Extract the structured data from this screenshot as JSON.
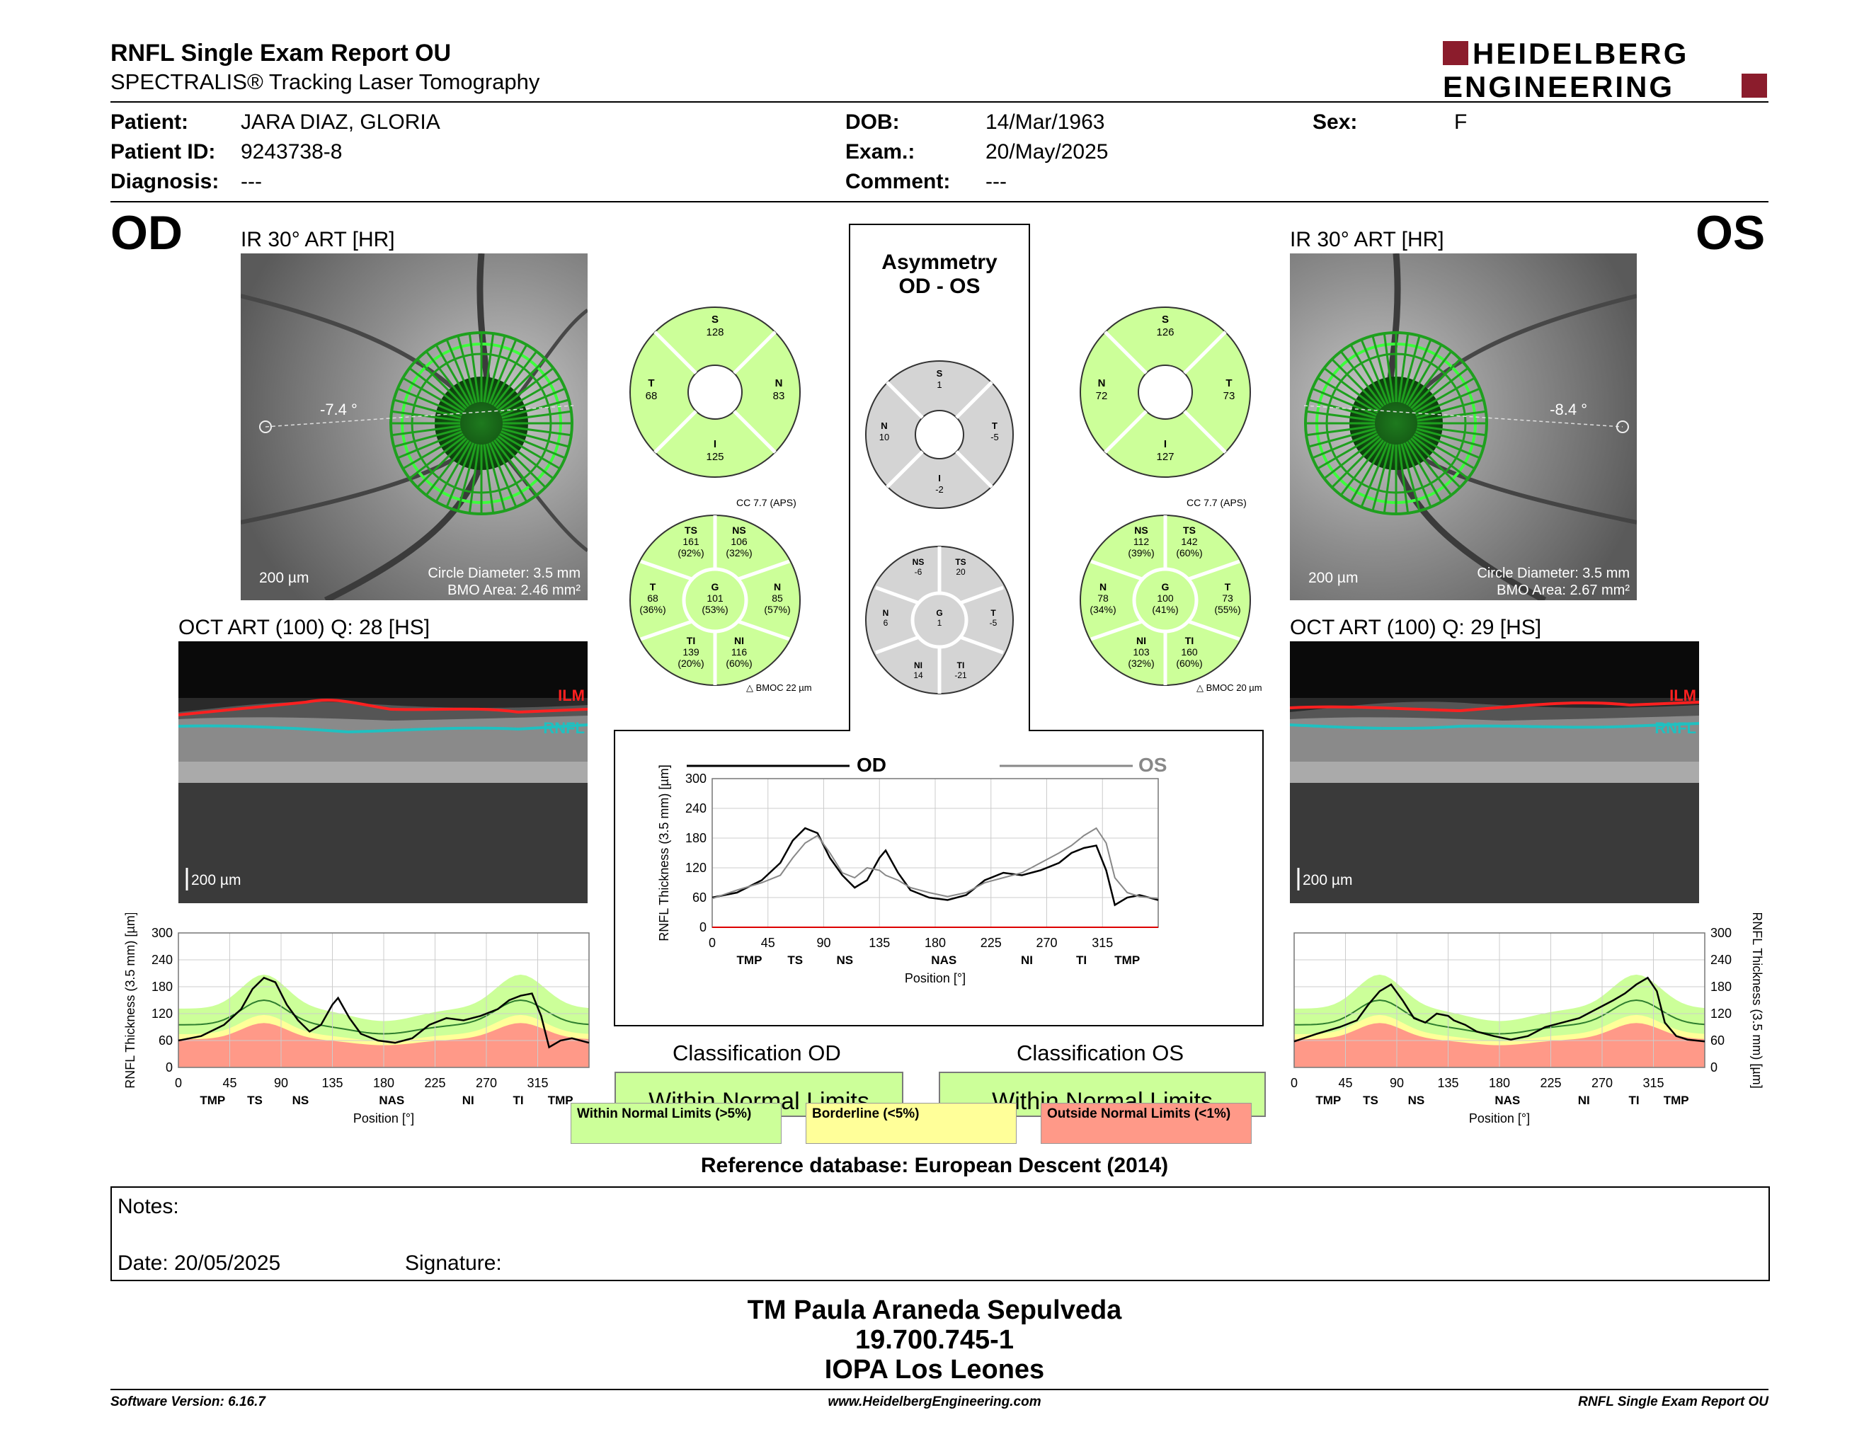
{
  "header": {
    "title": "RNFL Single Exam Report OU",
    "subtitle": "SPECTRALIS® Tracking Laser Tomography",
    "logo_line1": "HEIDELBERG",
    "logo_line2": "ENGINEERING"
  },
  "patient": {
    "patient_label": "Patient:",
    "patient_value": "JARA DIAZ, GLORIA",
    "id_label": "Patient ID:",
    "id_value": "9243738-8",
    "diagnosis_label": "Diagnosis:",
    "diagnosis_value": "---",
    "dob_label": "DOB:",
    "dob_value": "14/Mar/1963",
    "exam_label": "Exam.:",
    "exam_value": "20/May/2025",
    "comment_label": "Comment:",
    "comment_value": "---",
    "sex_label": "Sex:",
    "sex_value": "F"
  },
  "od": {
    "eye": "OD",
    "ir_title": "IR 30° ART [HR]",
    "angle": "-7.4 °",
    "scale": "200 µm",
    "circle_diameter": "Circle Diameter: 3.5 mm",
    "bmo_area": "BMO Area: 2.46 mm²",
    "oct_title": "OCT ART (100) Q: 28 [HS]",
    "oct_scale": "200 µm",
    "quad": {
      "S": "128",
      "T": "68",
      "N": "83",
      "I": "125"
    },
    "cc": "CC 7.7 (APS)",
    "bmoc": "BMOC 22 µm",
    "sectors": {
      "TS": [
        "161",
        "(92%)"
      ],
      "NS": [
        "106",
        "(32%)"
      ],
      "T": [
        "68",
        "(36%)"
      ],
      "G": [
        "101",
        "(53%)"
      ],
      "N": [
        "85",
        "(57%)"
      ],
      "TI": [
        "139",
        "(20%)"
      ],
      "NI": [
        "116",
        "(60%)"
      ]
    },
    "classification_title": "Classification OD",
    "classification": "Within Normal Limits"
  },
  "os": {
    "eye": "OS",
    "ir_title": "IR 30° ART [HR]",
    "angle": "-8.4 °",
    "scale": "200 µm",
    "circle_diameter": "Circle Diameter: 3.5 mm",
    "bmo_area": "BMO Area: 2.67 mm²",
    "oct_title": "OCT ART (100) Q: 29 [HS]",
    "oct_scale": "200 µm",
    "quad": {
      "S": "126",
      "N": "72",
      "T": "73",
      "I": "127"
    },
    "cc": "CC 7.7 (APS)",
    "bmoc": "BMOC 20 µm",
    "sectors": {
      "NS": [
        "112",
        "(39%)"
      ],
      "TS": [
        "142",
        "(60%)"
      ],
      "N": [
        "78",
        "(34%)"
      ],
      "G": [
        "100",
        "(41%)"
      ],
      "T": [
        "73",
        "(55%)"
      ],
      "NI": [
        "103",
        "(32%)"
      ],
      "TI": [
        "160",
        "(60%)"
      ]
    },
    "classification_title": "Classification OS",
    "classification": "Within Normal Limits"
  },
  "asym": {
    "title1": "Asymmetry",
    "title2": "OD - OS",
    "quad": {
      "S": "1",
      "N": "10",
      "T": "-5",
      "I": "-2"
    },
    "sectors": {
      "NS": "-6",
      "TS": "20",
      "N": "6",
      "G": "1",
      "T": "-5",
      "NI": "14",
      "TI": "-21"
    }
  },
  "oct_labels": {
    "ilm": "ILM",
    "rnfl": "RNFL"
  },
  "legend": {
    "wnl": "Within Normal Limits (>5%)",
    "bl": "Borderline (<5%)",
    "onl": "Outside Normal Limits (<1%)",
    "wnl_color": "#ccff99",
    "bl_color": "#ffff99",
    "onl_color": "#ff9988"
  },
  "chart_data": [
    {
      "type": "line",
      "id": "od-profile",
      "ylabel": "RNFL Thickness (3.5 mm) [µm]",
      "xlabel": "Position [°]",
      "xlim": [
        0,
        360
      ],
      "ylim": [
        0,
        300
      ],
      "x_ticks": [
        0,
        45,
        90,
        135,
        180,
        225,
        270,
        315
      ],
      "y_ticks": [
        0,
        60,
        120,
        180,
        240,
        300
      ],
      "sector_labels": [
        "TMP",
        "TS",
        "NS",
        "NAS",
        "NI",
        "TI",
        "TMP"
      ],
      "x": [
        0,
        20,
        40,
        55,
        65,
        75,
        85,
        95,
        105,
        115,
        125,
        135,
        140,
        150,
        160,
        175,
        190,
        205,
        220,
        235,
        250,
        265,
        280,
        290,
        300,
        310,
        318,
        325,
        335,
        345,
        360
      ],
      "series": [
        {
          "name": "OD",
          "values": [
            60,
            70,
            95,
            130,
            175,
            200,
            190,
            140,
            105,
            80,
            95,
            140,
            155,
            110,
            75,
            60,
            55,
            65,
            95,
            110,
            105,
            115,
            130,
            150,
            160,
            165,
            115,
            45,
            60,
            65,
            55
          ]
        }
      ]
    },
    {
      "type": "line",
      "id": "asym-profile",
      "ylabel": "RNFL Thickness (3.5 mm) [µm]",
      "xlabel": "Position [°]",
      "xlim": [
        0,
        360
      ],
      "ylim": [
        0,
        300
      ],
      "x_ticks": [
        0,
        45,
        90,
        135,
        180,
        225,
        270,
        315
      ],
      "y_ticks": [
        0,
        60,
        120,
        180,
        240,
        300
      ],
      "sector_labels": [
        "TMP",
        "TS",
        "NS",
        "NAS",
        "NI",
        "TI",
        "TMP"
      ],
      "x": [
        0,
        20,
        40,
        55,
        65,
        75,
        85,
        95,
        105,
        115,
        125,
        135,
        140,
        150,
        160,
        175,
        190,
        205,
        220,
        235,
        250,
        265,
        280,
        290,
        300,
        310,
        318,
        325,
        335,
        345,
        360
      ],
      "series": [
        {
          "name": "OD",
          "values": [
            60,
            70,
            95,
            130,
            175,
            200,
            190,
            140,
            105,
            80,
            95,
            140,
            155,
            110,
            75,
            60,
            55,
            65,
            95,
            110,
            105,
            115,
            130,
            150,
            160,
            165,
            115,
            45,
            60,
            65,
            55
          ]
        },
        {
          "name": "OS",
          "values": [
            58,
            75,
            90,
            105,
            140,
            170,
            185,
            150,
            110,
            100,
            120,
            115,
            105,
            95,
            80,
            70,
            62,
            70,
            90,
            100,
            110,
            130,
            150,
            165,
            185,
            200,
            170,
            100,
            70,
            62,
            58
          ]
        }
      ]
    },
    {
      "type": "line",
      "id": "os-profile",
      "ylabel": "RNFL Thickness (3.5 mm) [µm]",
      "xlabel": "Position [°]",
      "xlim": [
        0,
        360
      ],
      "ylim": [
        0,
        300
      ],
      "x_ticks": [
        0,
        45,
        90,
        135,
        180,
        225,
        270,
        315
      ],
      "y_ticks": [
        0,
        60,
        120,
        180,
        240,
        300
      ],
      "sector_labels": [
        "TMP",
        "TS",
        "NS",
        "NAS",
        "NI",
        "TI",
        "TMP"
      ],
      "x": [
        0,
        20,
        40,
        55,
        65,
        75,
        85,
        95,
        105,
        115,
        125,
        135,
        140,
        150,
        160,
        175,
        190,
        205,
        220,
        235,
        250,
        265,
        280,
        290,
        300,
        310,
        318,
        325,
        335,
        345,
        360
      ],
      "series": [
        {
          "name": "OS",
          "values": [
            58,
            75,
            90,
            105,
            140,
            170,
            185,
            150,
            110,
            100,
            120,
            115,
            105,
            95,
            80,
            70,
            62,
            70,
            90,
            100,
            110,
            130,
            150,
            165,
            185,
            200,
            170,
            100,
            70,
            62,
            58
          ]
        }
      ]
    }
  ],
  "refdb": "Reference database: European Descent (2014)",
  "notes": {
    "label": "Notes:",
    "date": "Date: 20/05/2025",
    "signature": "Signature:"
  },
  "signer": {
    "name": "TM Paula Araneda Sepulveda",
    "id": "19.700.745-1",
    "org": "IOPA Los Leones"
  },
  "footer": {
    "version": "Software Version: 6.16.7",
    "url": "www.HeidelbergEngineering.com",
    "report": "RNFL Single Exam Report OU"
  }
}
